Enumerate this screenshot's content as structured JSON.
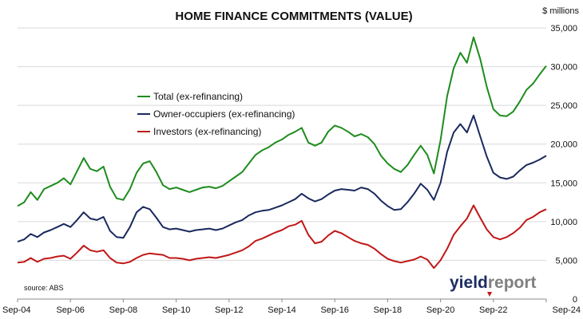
{
  "chart_data": {
    "type": "line",
    "title": "HOME FINANCE COMMITMENTS (VALUE)",
    "y_unit_label": "$ millions",
    "ylim": [
      0,
      35000
    ],
    "y_ticks": [
      0,
      5000,
      10000,
      15000,
      20000,
      25000,
      30000,
      35000
    ],
    "y_tick_labels": [
      "0",
      "5,000",
      "10,000",
      "15,000",
      "20,000",
      "25,000",
      "30,000",
      "35,000"
    ],
    "x_ticks": [
      "2004-09",
      "2006-09",
      "2008-09",
      "2010-09",
      "2012-09",
      "2014-09",
      "2016-09",
      "2018-09",
      "2020-09",
      "2022-09",
      "2024-09"
    ],
    "x_tick_labels": [
      "Sep-04",
      "Sep-06",
      "Sep-08",
      "Sep-10",
      "Sep-12",
      "Sep-14",
      "Sep-16",
      "Sep-18",
      "Sep-20",
      "Sep-22",
      "Sep-24"
    ],
    "xlim": [
      "2004-09",
      "2024-09"
    ],
    "grid": "horizontal",
    "legend_position": "top-left",
    "source": "source: ABS",
    "series": [
      {
        "name": "Total (ex-refinancing)",
        "color": "#1e8c1e",
        "points": [
          [
            "2004-09",
            12000
          ],
          [
            "2004-12",
            12500
          ],
          [
            "2005-03",
            13800
          ],
          [
            "2005-06",
            12800
          ],
          [
            "2005-09",
            14200
          ],
          [
            "2005-12",
            14600
          ],
          [
            "2006-03",
            15000
          ],
          [
            "2006-06",
            15600
          ],
          [
            "2006-09",
            14800
          ],
          [
            "2006-12",
            16500
          ],
          [
            "2007-03",
            18200
          ],
          [
            "2007-06",
            16800
          ],
          [
            "2007-09",
            16500
          ],
          [
            "2007-12",
            17100
          ],
          [
            "2008-03",
            14500
          ],
          [
            "2008-06",
            13000
          ],
          [
            "2008-09",
            12800
          ],
          [
            "2008-12",
            14200
          ],
          [
            "2009-03",
            16300
          ],
          [
            "2009-06",
            17500
          ],
          [
            "2009-09",
            17800
          ],
          [
            "2009-12",
            16400
          ],
          [
            "2010-03",
            14700
          ],
          [
            "2010-06",
            14200
          ],
          [
            "2010-09",
            14400
          ],
          [
            "2010-12",
            14100
          ],
          [
            "2011-03",
            13800
          ],
          [
            "2011-06",
            14100
          ],
          [
            "2011-09",
            14400
          ],
          [
            "2011-12",
            14500
          ],
          [
            "2012-03",
            14300
          ],
          [
            "2012-06",
            14600
          ],
          [
            "2012-09",
            15200
          ],
          [
            "2012-12",
            15800
          ],
          [
            "2013-03",
            16400
          ],
          [
            "2013-06",
            17500
          ],
          [
            "2013-09",
            18600
          ],
          [
            "2013-12",
            19200
          ],
          [
            "2014-03",
            19600
          ],
          [
            "2014-06",
            20200
          ],
          [
            "2014-09",
            20600
          ],
          [
            "2014-12",
            21200
          ],
          [
            "2015-03",
            21600
          ],
          [
            "2015-06",
            22100
          ],
          [
            "2015-09",
            20200
          ],
          [
            "2015-12",
            19800
          ],
          [
            "2016-03",
            20200
          ],
          [
            "2016-06",
            21600
          ],
          [
            "2016-09",
            22400
          ],
          [
            "2016-12",
            22100
          ],
          [
            "2017-03",
            21600
          ],
          [
            "2017-06",
            21000
          ],
          [
            "2017-09",
            21300
          ],
          [
            "2017-12",
            20900
          ],
          [
            "2018-03",
            20000
          ],
          [
            "2018-06",
            18500
          ],
          [
            "2018-09",
            17500
          ],
          [
            "2018-12",
            16800
          ],
          [
            "2019-03",
            16400
          ],
          [
            "2019-06",
            17300
          ],
          [
            "2019-09",
            18600
          ],
          [
            "2019-12",
            19800
          ],
          [
            "2020-03",
            18600
          ],
          [
            "2020-06",
            16200
          ],
          [
            "2020-09",
            20500
          ],
          [
            "2020-12",
            26200
          ],
          [
            "2021-03",
            29800
          ],
          [
            "2021-06",
            31800
          ],
          [
            "2021-09",
            30500
          ],
          [
            "2021-12",
            33800
          ],
          [
            "2022-03",
            31000
          ],
          [
            "2022-06",
            27400
          ],
          [
            "2022-09",
            24500
          ],
          [
            "2022-12",
            23700
          ],
          [
            "2023-03",
            23600
          ],
          [
            "2023-06",
            24200
          ],
          [
            "2023-09",
            25500
          ],
          [
            "2023-12",
            27000
          ],
          [
            "2024-03",
            27800
          ],
          [
            "2024-06",
            29000
          ],
          [
            "2024-09",
            30100
          ]
        ]
      },
      {
        "name": "Owner-occupiers (ex-refinancing)",
        "color": "#1a2a5e",
        "points": [
          [
            "2004-09",
            7400
          ],
          [
            "2004-12",
            7700
          ],
          [
            "2005-03",
            8400
          ],
          [
            "2005-06",
            8000
          ],
          [
            "2005-09",
            8600
          ],
          [
            "2005-12",
            8900
          ],
          [
            "2006-03",
            9300
          ],
          [
            "2006-06",
            9700
          ],
          [
            "2006-09",
            9300
          ],
          [
            "2006-12",
            10200
          ],
          [
            "2007-03",
            11200
          ],
          [
            "2007-06",
            10400
          ],
          [
            "2007-09",
            10200
          ],
          [
            "2007-12",
            10600
          ],
          [
            "2008-03",
            8800
          ],
          [
            "2008-06",
            8000
          ],
          [
            "2008-09",
            7900
          ],
          [
            "2008-12",
            9300
          ],
          [
            "2009-03",
            11200
          ],
          [
            "2009-06",
            11900
          ],
          [
            "2009-09",
            11600
          ],
          [
            "2009-12",
            10500
          ],
          [
            "2010-03",
            9300
          ],
          [
            "2010-06",
            9000
          ],
          [
            "2010-09",
            9100
          ],
          [
            "2010-12",
            8900
          ],
          [
            "2011-03",
            8700
          ],
          [
            "2011-06",
            8900
          ],
          [
            "2011-09",
            9000
          ],
          [
            "2011-12",
            9100
          ],
          [
            "2012-03",
            8900
          ],
          [
            "2012-06",
            9100
          ],
          [
            "2012-09",
            9500
          ],
          [
            "2012-12",
            9900
          ],
          [
            "2013-03",
            10200
          ],
          [
            "2013-06",
            10800
          ],
          [
            "2013-09",
            11200
          ],
          [
            "2013-12",
            11400
          ],
          [
            "2014-03",
            11500
          ],
          [
            "2014-06",
            11800
          ],
          [
            "2014-09",
            12100
          ],
          [
            "2014-12",
            12500
          ],
          [
            "2015-03",
            12900
          ],
          [
            "2015-06",
            13600
          ],
          [
            "2015-09",
            13000
          ],
          [
            "2015-12",
            12600
          ],
          [
            "2016-03",
            12900
          ],
          [
            "2016-06",
            13500
          ],
          [
            "2016-09",
            14000
          ],
          [
            "2016-12",
            14200
          ],
          [
            "2017-03",
            14100
          ],
          [
            "2017-06",
            14000
          ],
          [
            "2017-09",
            14400
          ],
          [
            "2017-12",
            14200
          ],
          [
            "2018-03",
            13600
          ],
          [
            "2018-06",
            12700
          ],
          [
            "2018-09",
            12000
          ],
          [
            "2018-12",
            11500
          ],
          [
            "2019-03",
            11600
          ],
          [
            "2019-06",
            12500
          ],
          [
            "2019-09",
            13600
          ],
          [
            "2019-12",
            14900
          ],
          [
            "2020-03",
            14100
          ],
          [
            "2020-06",
            12800
          ],
          [
            "2020-09",
            15000
          ],
          [
            "2020-12",
            19000
          ],
          [
            "2021-03",
            21500
          ],
          [
            "2021-06",
            22600
          ],
          [
            "2021-09",
            21500
          ],
          [
            "2021-12",
            23700
          ],
          [
            "2022-03",
            21000
          ],
          [
            "2022-06",
            18400
          ],
          [
            "2022-09",
            16300
          ],
          [
            "2022-12",
            15700
          ],
          [
            "2023-03",
            15500
          ],
          [
            "2023-06",
            15800
          ],
          [
            "2023-09",
            16600
          ],
          [
            "2023-12",
            17300
          ],
          [
            "2024-03",
            17600
          ],
          [
            "2024-06",
            18000
          ],
          [
            "2024-09",
            18500
          ]
        ]
      },
      {
        "name": "Investors (ex-refinancing)",
        "color": "#c01818",
        "points": [
          [
            "2004-09",
            4700
          ],
          [
            "2004-12",
            4800
          ],
          [
            "2005-03",
            5300
          ],
          [
            "2005-06",
            4800
          ],
          [
            "2005-09",
            5200
          ],
          [
            "2005-12",
            5300
          ],
          [
            "2006-03",
            5500
          ],
          [
            "2006-06",
            5600
          ],
          [
            "2006-09",
            5200
          ],
          [
            "2006-12",
            6000
          ],
          [
            "2007-03",
            6900
          ],
          [
            "2007-06",
            6300
          ],
          [
            "2007-09",
            6100
          ],
          [
            "2007-12",
            6300
          ],
          [
            "2008-03",
            5300
          ],
          [
            "2008-06",
            4700
          ],
          [
            "2008-09",
            4600
          ],
          [
            "2008-12",
            4800
          ],
          [
            "2009-03",
            5300
          ],
          [
            "2009-06",
            5700
          ],
          [
            "2009-09",
            5900
          ],
          [
            "2009-12",
            5800
          ],
          [
            "2010-03",
            5700
          ],
          [
            "2010-06",
            5300
          ],
          [
            "2010-09",
            5300
          ],
          [
            "2010-12",
            5200
          ],
          [
            "2011-03",
            5000
          ],
          [
            "2011-06",
            5200
          ],
          [
            "2011-09",
            5300
          ],
          [
            "2011-12",
            5400
          ],
          [
            "2012-03",
            5300
          ],
          [
            "2012-06",
            5500
          ],
          [
            "2012-09",
            5700
          ],
          [
            "2012-12",
            6000
          ],
          [
            "2013-03",
            6300
          ],
          [
            "2013-06",
            6800
          ],
          [
            "2013-09",
            7500
          ],
          [
            "2013-12",
            7800
          ],
          [
            "2014-03",
            8200
          ],
          [
            "2014-06",
            8600
          ],
          [
            "2014-09",
            8900
          ],
          [
            "2014-12",
            9400
          ],
          [
            "2015-03",
            9600
          ],
          [
            "2015-06",
            10100
          ],
          [
            "2015-09",
            8300
          ],
          [
            "2015-12",
            7200
          ],
          [
            "2016-03",
            7400
          ],
          [
            "2016-06",
            8200
          ],
          [
            "2016-09",
            8800
          ],
          [
            "2016-12",
            8500
          ],
          [
            "2017-03",
            8000
          ],
          [
            "2017-06",
            7500
          ],
          [
            "2017-09",
            7200
          ],
          [
            "2017-12",
            7000
          ],
          [
            "2018-03",
            6500
          ],
          [
            "2018-06",
            5800
          ],
          [
            "2018-09",
            5200
          ],
          [
            "2018-12",
            4900
          ],
          [
            "2019-03",
            4700
          ],
          [
            "2019-06",
            4900
          ],
          [
            "2019-09",
            5100
          ],
          [
            "2019-12",
            5500
          ],
          [
            "2020-03",
            5100
          ],
          [
            "2020-06",
            4000
          ],
          [
            "2020-09",
            5000
          ],
          [
            "2020-12",
            6500
          ],
          [
            "2021-03",
            8300
          ],
          [
            "2021-06",
            9400
          ],
          [
            "2021-09",
            10400
          ],
          [
            "2021-12",
            12100
          ],
          [
            "2022-03",
            10500
          ],
          [
            "2022-06",
            9000
          ],
          [
            "2022-09",
            8000
          ],
          [
            "2022-12",
            7700
          ],
          [
            "2023-03",
            8000
          ],
          [
            "2023-06",
            8500
          ],
          [
            "2023-09",
            9200
          ],
          [
            "2023-12",
            10200
          ],
          [
            "2024-03",
            10600
          ],
          [
            "2024-06",
            11200
          ],
          [
            "2024-09",
            11600
          ]
        ]
      }
    ]
  },
  "branding": {
    "part_a": "yield",
    "part_b": "report",
    "color_a": "#1b2d63",
    "color_b": "#808080"
  }
}
